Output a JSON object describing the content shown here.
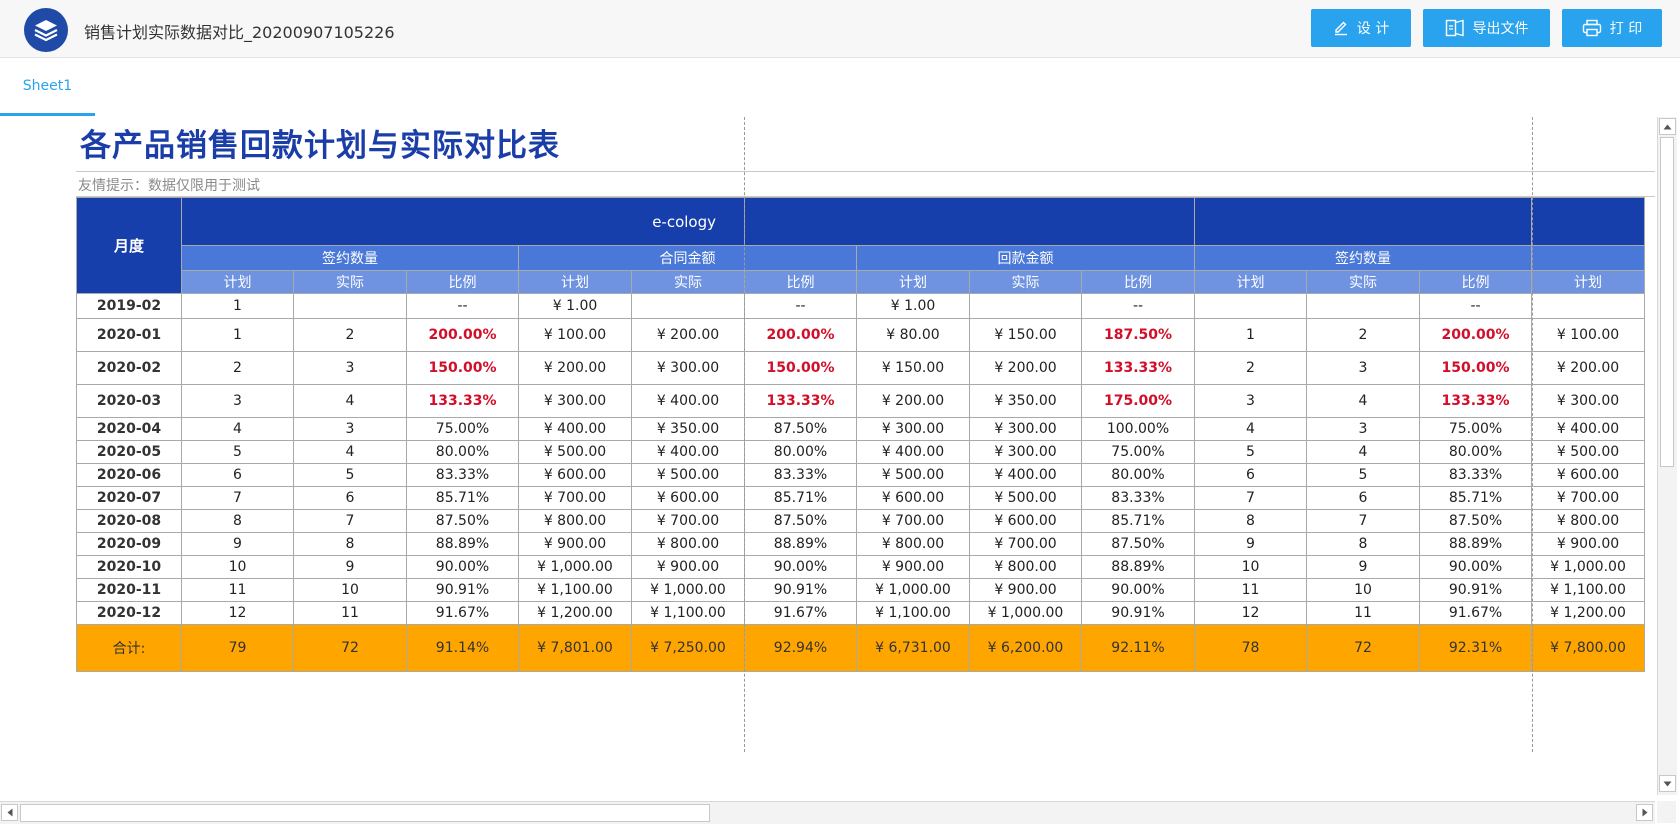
{
  "app": {
    "doc_title": "销售计划实际数据对比_20200907105226",
    "buttons": {
      "design": "设 计",
      "export": "导出文件",
      "print": "打 印"
    }
  },
  "tabs": [
    {
      "label": "Sheet1",
      "active": true
    }
  ],
  "report": {
    "title": "各产品销售回款计划与实际对比表",
    "hint": "友情提示：数据仅限用于测试",
    "header": {
      "month": "月度",
      "product": "e-cology",
      "groups": [
        "签约数量",
        "合同金额",
        "回款金额",
        "签约数量"
      ],
      "sub": [
        "计划",
        "实际",
        "比例",
        "计划",
        "实际",
        "比例",
        "计划",
        "实际",
        "比例",
        "计划",
        "实际",
        "比例",
        "计划"
      ]
    },
    "rows": [
      {
        "month": "2019-02",
        "cells": [
          "1",
          "",
          "--",
          "¥ 1.00",
          "",
          "--",
          "¥ 1.00",
          "",
          "--",
          "",
          "",
          "--",
          ""
        ]
      },
      {
        "month": "2020-01",
        "cells": [
          "1",
          "2",
          "200.00%",
          "¥ 100.00",
          "¥ 200.00",
          "200.00%",
          "¥ 80.00",
          "¥ 150.00",
          "187.50%",
          "1",
          "2",
          "200.00%",
          "¥ 100.00"
        ]
      },
      {
        "month": "2020-02",
        "cells": [
          "2",
          "3",
          "150.00%",
          "¥ 200.00",
          "¥ 300.00",
          "150.00%",
          "¥ 150.00",
          "¥ 200.00",
          "133.33%",
          "2",
          "3",
          "150.00%",
          "¥ 200.00"
        ]
      },
      {
        "month": "2020-03",
        "cells": [
          "3",
          "4",
          "133.33%",
          "¥ 300.00",
          "¥ 400.00",
          "133.33%",
          "¥ 200.00",
          "¥ 350.00",
          "175.00%",
          "3",
          "4",
          "133.33%",
          "¥ 300.00"
        ]
      },
      {
        "month": "2020-04",
        "cells": [
          "4",
          "3",
          "75.00%",
          "¥ 400.00",
          "¥ 350.00",
          "87.50%",
          "¥ 300.00",
          "¥ 300.00",
          "100.00%",
          "4",
          "3",
          "75.00%",
          "¥ 400.00"
        ]
      },
      {
        "month": "2020-05",
        "cells": [
          "5",
          "4",
          "80.00%",
          "¥ 500.00",
          "¥ 400.00",
          "80.00%",
          "¥ 400.00",
          "¥ 300.00",
          "75.00%",
          "5",
          "4",
          "80.00%",
          "¥ 500.00"
        ]
      },
      {
        "month": "2020-06",
        "cells": [
          "6",
          "5",
          "83.33%",
          "¥ 600.00",
          "¥ 500.00",
          "83.33%",
          "¥ 500.00",
          "¥ 400.00",
          "80.00%",
          "6",
          "5",
          "83.33%",
          "¥ 600.00"
        ]
      },
      {
        "month": "2020-07",
        "cells": [
          "7",
          "6",
          "85.71%",
          "¥ 700.00",
          "¥ 600.00",
          "85.71%",
          "¥ 600.00",
          "¥ 500.00",
          "83.33%",
          "7",
          "6",
          "85.71%",
          "¥ 700.00"
        ]
      },
      {
        "month": "2020-08",
        "cells": [
          "8",
          "7",
          "87.50%",
          "¥ 800.00",
          "¥ 700.00",
          "87.50%",
          "¥ 700.00",
          "¥ 600.00",
          "85.71%",
          "8",
          "7",
          "87.50%",
          "¥ 800.00"
        ]
      },
      {
        "month": "2020-09",
        "cells": [
          "9",
          "8",
          "88.89%",
          "¥ 900.00",
          "¥ 800.00",
          "88.89%",
          "¥ 800.00",
          "¥ 700.00",
          "87.50%",
          "9",
          "8",
          "88.89%",
          "¥ 900.00"
        ]
      },
      {
        "month": "2020-10",
        "cells": [
          "10",
          "9",
          "90.00%",
          "¥ 1,000.00",
          "¥ 900.00",
          "90.00%",
          "¥ 900.00",
          "¥ 800.00",
          "88.89%",
          "10",
          "9",
          "90.00%",
          "¥ 1,000.00"
        ]
      },
      {
        "month": "2020-11",
        "cells": [
          "11",
          "10",
          "90.91%",
          "¥ 1,100.00",
          "¥ 1,000.00",
          "90.91%",
          "¥ 1,000.00",
          "¥ 900.00",
          "90.00%",
          "11",
          "10",
          "90.91%",
          "¥ 1,100.00"
        ]
      },
      {
        "month": "2020-12",
        "cells": [
          "12",
          "11",
          "91.67%",
          "¥ 1,200.00",
          "¥ 1,100.00",
          "91.67%",
          "¥ 1,100.00",
          "¥ 1,000.00",
          "90.91%",
          "12",
          "11",
          "91.67%",
          "¥ 1,200.00"
        ]
      }
    ],
    "total": {
      "label": "合计:",
      "cells": [
        "79",
        "72",
        "91.14%",
        "¥ 7,801.00",
        "¥ 7,250.00",
        "92.94%",
        "¥ 6,731.00",
        "¥ 6,200.00",
        "92.11%",
        "78",
        "72",
        "92.31%",
        "¥ 7,800.00"
      ]
    }
  },
  "colors": {
    "header_dark": "#173fab",
    "header_mid": "#4a78d8",
    "header_light": "#6f93e0",
    "highlight_red": "#d20f2a",
    "total_bg": "#ffa500",
    "button_blue": "#29a3ee",
    "title_blue": "#1a3da8"
  },
  "icons": {
    "logo": "stack-layers-icon",
    "design": "pencil-icon",
    "export": "export-file-icon",
    "print": "printer-icon"
  }
}
